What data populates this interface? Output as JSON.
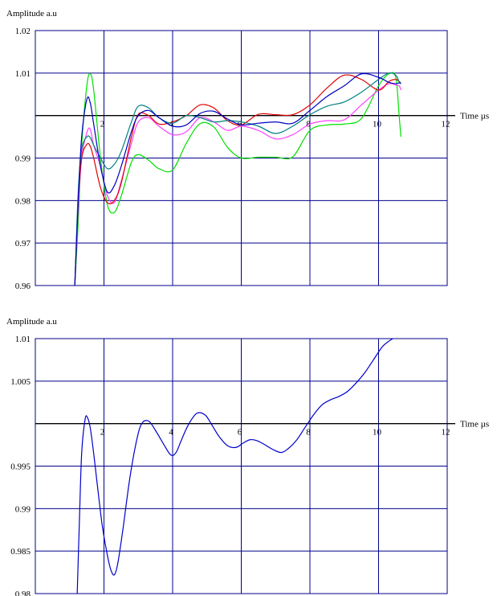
{
  "chart_data": [
    {
      "type": "line",
      "title": "",
      "ylabel": "Amplitude a.u",
      "xlabel": "Time  µs",
      "xlim": [
        0,
        12
      ],
      "ylim": [
        0.96,
        1.02
      ],
      "x_ticks": [
        2,
        4,
        6,
        8,
        10,
        12
      ],
      "y_ticks": [
        "0.96",
        "0.97",
        "0.98",
        "0.99",
        "1.01",
        "1.02"
      ],
      "y_tick_values": [
        0.96,
        0.97,
        0.98,
        0.99,
        1.01,
        1.02
      ],
      "x_axis_at_y": 1.0,
      "grid": true,
      "series": [
        {
          "color": "#00e000",
          "x": [
            1.15,
            1.25,
            1.35,
            1.5,
            1.6,
            1.7,
            1.9,
            2.1,
            2.3,
            2.5,
            2.8,
            3.0,
            3.3,
            3.6,
            4.0,
            4.4,
            4.8,
            5.2,
            5.6,
            6.0,
            6.5,
            7.0,
            7.5,
            8.0,
            8.5,
            9.0,
            9.5,
            10.0,
            10.3,
            10.5,
            10.6,
            10.65
          ],
          "y": [
            0.96,
            0.975,
            0.993,
            1.007,
            1.0098,
            1.006,
            0.99,
            0.979,
            0.9772,
            0.981,
            0.989,
            0.9908,
            0.9895,
            0.9875,
            0.9872,
            0.9935,
            0.9981,
            0.9973,
            0.9925,
            0.99,
            0.9902,
            0.9902,
            0.9903,
            0.9965,
            0.9978,
            0.998,
            0.9993,
            1.007,
            1.0098,
            1.009,
            1.0,
            0.995
          ]
        },
        {
          "color": "#ff40ff",
          "x": [
            1.15,
            1.25,
            1.35,
            1.5,
            1.6,
            1.7,
            1.9,
            2.1,
            2.3,
            2.5,
            2.8,
            3.0,
            3.3,
            3.6,
            4.0,
            4.4,
            4.8,
            5.2,
            5.6,
            6.0,
            6.5,
            7.0,
            7.5,
            8.0,
            8.5,
            9.0,
            9.5,
            10.0,
            10.3,
            10.5,
            10.6,
            10.65
          ],
          "y": [
            0.96,
            0.978,
            0.99,
            0.996,
            0.9968,
            0.993,
            0.988,
            0.9812,
            0.9795,
            0.9845,
            0.9935,
            0.9985,
            0.9995,
            0.9975,
            0.9955,
            0.9962,
            0.9995,
            0.9985,
            0.9965,
            0.9975,
            0.9965,
            0.9945,
            0.9955,
            0.998,
            0.9988,
            0.999,
            1.0025,
            1.006,
            1.0075,
            1.0072,
            1.007,
            1.006
          ]
        },
        {
          "color": "#e00000",
          "x": [
            1.15,
            1.25,
            1.35,
            1.5,
            1.6,
            1.7,
            1.9,
            2.1,
            2.3,
            2.5,
            2.8,
            3.0,
            3.3,
            3.6,
            4.0,
            4.4,
            4.8,
            5.2,
            5.6,
            6.0,
            6.5,
            7.0,
            7.5,
            8.0,
            8.5,
            9.0,
            9.5,
            10.0,
            10.3,
            10.5,
            10.6,
            10.65
          ],
          "y": [
            0.96,
            0.98,
            0.99,
            0.9932,
            0.9928,
            0.99,
            0.983,
            0.9795,
            0.98,
            0.984,
            0.995,
            1.0003,
            1.0,
            0.998,
            0.9985,
            1.0,
            1.0025,
            1.0018,
            0.9988,
            0.9978,
            1.0003,
            1.0002,
            1.0002,
            1.0025,
            1.0065,
            1.0095,
            1.0085,
            1.006,
            1.008,
            1.0085,
            1.008,
            1.0075
          ]
        },
        {
          "color": "#008080",
          "x": [
            1.15,
            1.25,
            1.35,
            1.5,
            1.6,
            1.7,
            1.9,
            2.1,
            2.3,
            2.5,
            2.8,
            3.0,
            3.3,
            3.6,
            4.0,
            4.4,
            4.8,
            5.2,
            5.6,
            6.0,
            6.5,
            7.0,
            7.5,
            8.0,
            8.5,
            9.0,
            9.5,
            10.0,
            10.3,
            10.5,
            10.6,
            10.65
          ],
          "y": [
            0.96,
            0.982,
            0.992,
            0.995,
            0.9948,
            0.993,
            0.99,
            0.9875,
            0.9885,
            0.9915,
            0.9985,
            1.0022,
            1.0018,
            0.9995,
            0.9982,
            1.0,
            0.9995,
            0.9985,
            0.9988,
            0.9985,
            0.9975,
            0.9958,
            0.9975,
            1.0002,
            1.0022,
            1.0032,
            1.0055,
            1.0085,
            1.01,
            1.0095,
            1.008,
            1.0078
          ]
        },
        {
          "color": "#0000c0",
          "x": [
            1.15,
            1.25,
            1.35,
            1.5,
            1.6,
            1.7,
            1.9,
            2.1,
            2.3,
            2.5,
            2.8,
            3.0,
            3.3,
            3.6,
            4.0,
            4.4,
            4.8,
            5.2,
            5.6,
            6.0,
            6.5,
            7.0,
            7.5,
            8.0,
            8.5,
            9.0,
            9.5,
            10.0,
            10.3,
            10.5,
            10.6,
            10.65
          ],
          "y": [
            0.96,
            0.98,
            0.995,
            1.0038,
            1.003,
            0.998,
            0.988,
            0.982,
            0.9835,
            0.988,
            0.9962,
            1.0,
            1.0012,
            0.9995,
            0.9975,
            0.9978,
            1.0005,
            1.001,
            0.9992,
            0.9978,
            0.9982,
            0.9985,
            0.9982,
            1.0012,
            1.0045,
            1.007,
            1.0098,
            1.009,
            1.0078,
            1.0075,
            1.0077,
            1.0075
          ]
        }
      ]
    },
    {
      "type": "line",
      "title": "",
      "ylabel": "Amplitude a.u",
      "xlabel": "Time  µs",
      "xlim": [
        0,
        12
      ],
      "ylim": [
        0.98,
        1.01
      ],
      "x_ticks": [
        2,
        4,
        6,
        8,
        10,
        12
      ],
      "y_ticks": [
        "0.98",
        "0.985",
        "0.99",
        "0.995",
        "1.005",
        "1.01"
      ],
      "y_tick_values": [
        0.98,
        0.985,
        0.99,
        0.995,
        1.005,
        1.01
      ],
      "x_axis_at_y": 1.0,
      "grid": true,
      "series": [
        {
          "color": "#0000cc",
          "x": [
            1.22,
            1.28,
            1.35,
            1.45,
            1.52,
            1.6,
            1.7,
            1.8,
            1.95,
            2.1,
            2.2,
            2.3,
            2.4,
            2.55,
            2.75,
            2.95,
            3.1,
            3.3,
            3.5,
            3.75,
            3.95,
            4.1,
            4.25,
            4.45,
            4.7,
            4.95,
            5.15,
            5.35,
            5.6,
            5.85,
            6.05,
            6.25,
            6.45,
            6.65,
            6.9,
            7.15,
            7.35,
            7.6,
            7.85,
            8.1,
            8.35,
            8.6,
            8.85,
            9.1,
            9.35,
            9.6,
            9.85,
            10.1,
            10.3,
            10.5
          ],
          "y": [
            0.98,
            0.988,
            0.9965,
            1.0005,
            1.0007,
            0.9995,
            0.9965,
            0.993,
            0.988,
            0.9845,
            0.9828,
            0.9822,
            0.9835,
            0.9875,
            0.9935,
            0.998,
            1.0,
            1.0003,
            0.9992,
            0.9975,
            0.9963,
            0.9966,
            0.998,
            0.9998,
            1.0012,
            1.001,
            0.9998,
            0.9985,
            0.9974,
            0.9972,
            0.9977,
            0.9981,
            0.998,
            0.9976,
            0.997,
            0.9966,
            0.997,
            0.998,
            0.9995,
            1.001,
            1.0022,
            1.0028,
            1.0032,
            1.0038,
            1.0048,
            1.006,
            1.0075,
            1.009,
            1.0097,
            1.0102
          ]
        }
      ]
    }
  ]
}
